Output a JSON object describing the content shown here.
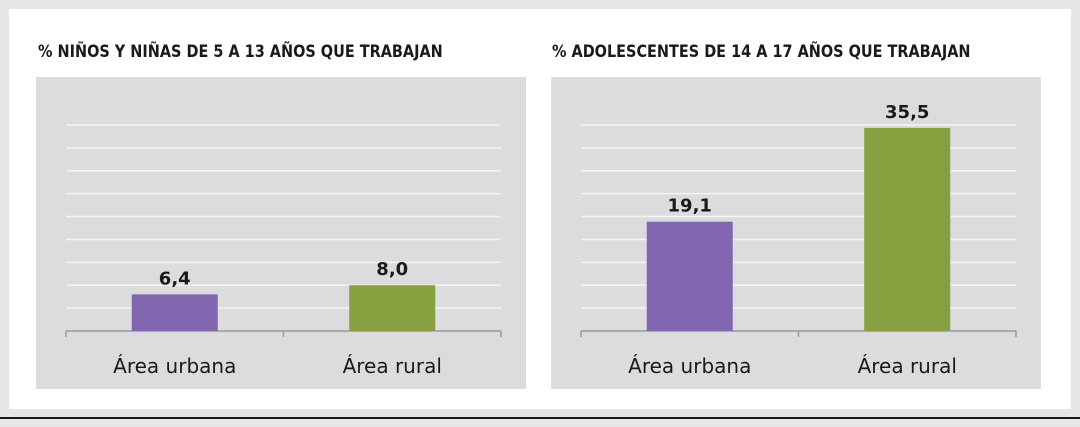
{
  "chart_data": [
    {
      "type": "bar",
      "title": "% NIÑOS Y NIÑAS DE 5 A 13 AÑOS QUE TRABAJAN",
      "categories": [
        "Área urbana",
        "Área rural"
      ],
      "values": [
        6.4,
        8.0
      ],
      "value_labels": [
        "6,4",
        "8,0"
      ],
      "ylim": [
        0,
        36
      ],
      "grid": true,
      "colors": [
        "#8267b0",
        "#87a040"
      ]
    },
    {
      "type": "bar",
      "title": "% ADOLESCENTES DE 14 A 17 AÑOS QUE TRABAJAN",
      "categories": [
        "Área urbana",
        "Área rural"
      ],
      "values": [
        19.1,
        35.5
      ],
      "value_labels": [
        "19,1",
        "35,5"
      ],
      "ylim": [
        0,
        36
      ],
      "grid": true,
      "colors": [
        "#8267b0",
        "#87a040"
      ]
    }
  ]
}
